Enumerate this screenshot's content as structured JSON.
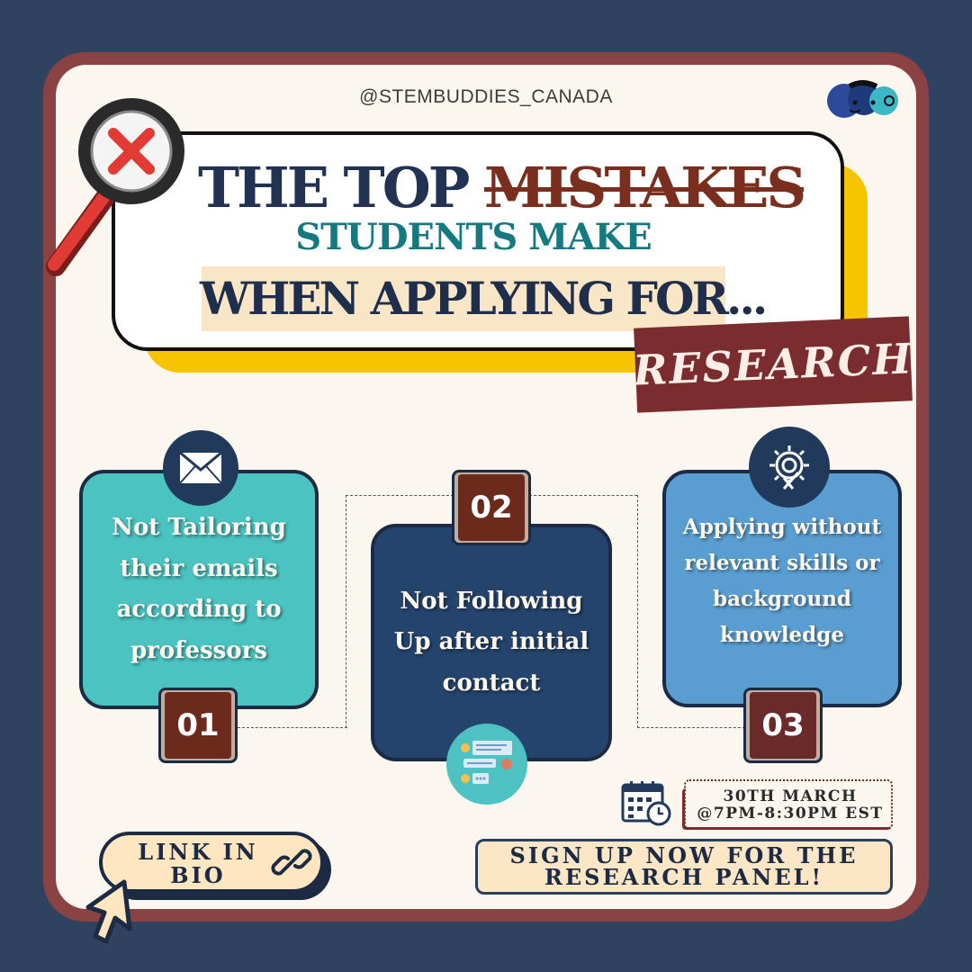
{
  "header": {
    "handle": "@STEMBUDDIES_CANADA"
  },
  "title": {
    "line1_a": "THE TOP ",
    "line1_b": "MISTAKES",
    "line2": "STUDENTS MAKE",
    "line3": "WHEN APPLYING FOR...",
    "tag": "RESEARCH"
  },
  "steps": [
    {
      "number": "01",
      "text": "Not Tailoring their emails according to professors",
      "icon": "envelope-icon"
    },
    {
      "number": "02",
      "text": "Not Following Up after initial contact",
      "icon": "chat-icon"
    },
    {
      "number": "03",
      "text": "Applying without relevant skills or background knowledge",
      "icon": "gear-icon"
    }
  ],
  "cta": {
    "link_label": "LINK IN BIO",
    "signup_label": "SIGN UP NOW FOR THE RESEARCH PANEL!",
    "date_line1": "30TH MARCH",
    "date_line2": "@7PM-8:30PM EST"
  },
  "colors": {
    "background": "#2f4360",
    "frame": "#8a4242",
    "card": "#fbf7ef",
    "accent_yellow": "#f7c500",
    "teal": "#4bc3c1",
    "navy": "#24446d",
    "blue": "#5a9ed1"
  }
}
